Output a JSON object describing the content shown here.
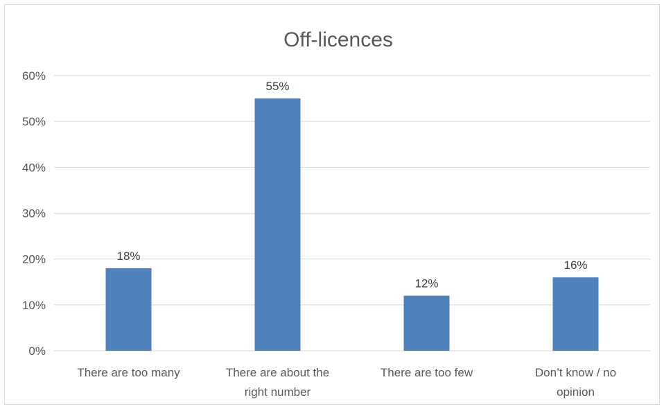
{
  "chart_data": {
    "type": "bar",
    "title": "Off-licences",
    "categories": [
      [
        "There are too many"
      ],
      [
        "There are about the",
        "right number"
      ],
      [
        "There are too few"
      ],
      [
        "Don’t know / no",
        "opinion"
      ]
    ],
    "values": [
      0.18,
      0.55,
      0.12,
      0.16
    ],
    "data_labels": [
      "18%",
      "55%",
      "12%",
      "16%"
    ],
    "y_ticks": [
      "0%",
      "10%",
      "20%",
      "30%",
      "40%",
      "50%",
      "60%"
    ],
    "ylim": [
      0,
      0.6
    ],
    "xlabel": "",
    "ylabel": "",
    "grid": true,
    "legend": "none",
    "bar_color": "#4f81bd",
    "grid_color": "#d9d9d9"
  }
}
